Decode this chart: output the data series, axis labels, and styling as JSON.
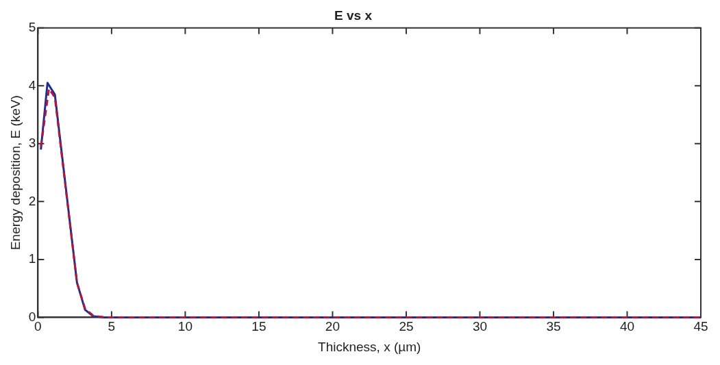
{
  "chart_data": {
    "type": "line",
    "title": "E vs x",
    "xlabel": "Thickness, x (µm)",
    "ylabel": "Energy deposition, E (keV)",
    "xlim": [
      0,
      45
    ],
    "xticks": [
      0,
      5,
      10,
      15,
      20,
      25,
      30,
      35,
      40,
      45
    ],
    "ylim": [
      0,
      5
    ],
    "yticks": [
      0,
      1,
      2,
      3,
      4,
      5
    ],
    "grid": false,
    "legend": false,
    "series": [
      {
        "color": "#1f2d8f",
        "line_style": "solid",
        "x": [
          0.2,
          0.65,
          1.15,
          2.65,
          3.2,
          3.75,
          4.5,
          45
        ],
        "values": [
          2.9,
          4.05,
          3.85,
          0.6,
          0.13,
          0.02,
          0,
          0
        ]
      },
      {
        "color": "#b0183c",
        "line_style": "dashed",
        "x": [
          0.2,
          0.75,
          1.15,
          2.65,
          3.2,
          3.75,
          4.5,
          45
        ],
        "values": [
          2.95,
          3.95,
          3.8,
          0.6,
          0.15,
          0.03,
          0,
          0
        ]
      }
    ]
  }
}
